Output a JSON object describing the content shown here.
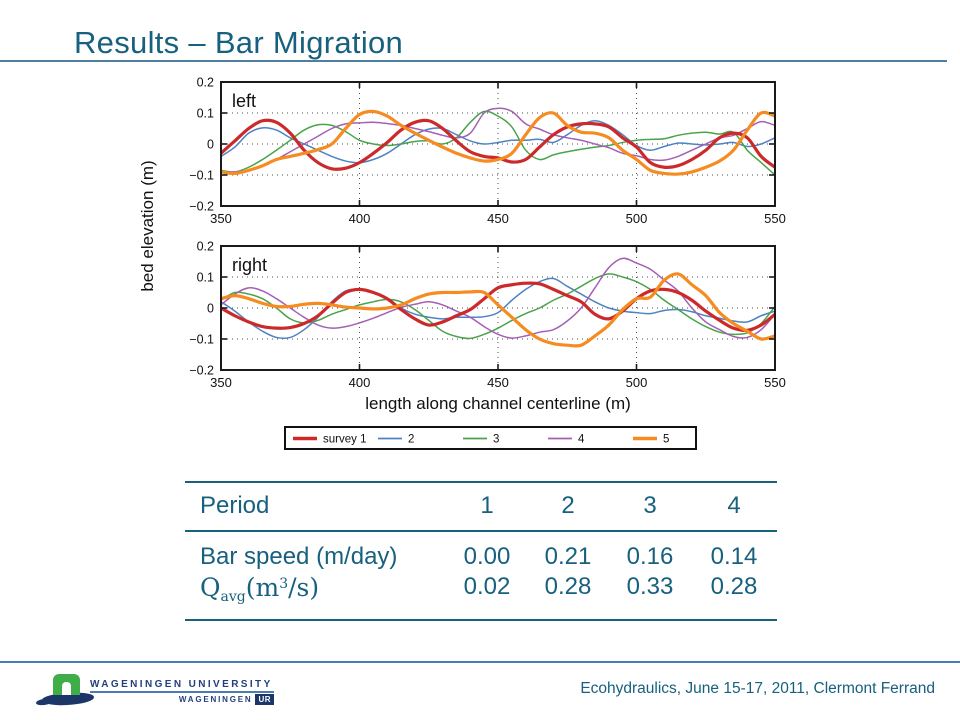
{
  "slide": {
    "title": "Results – Bar Migration"
  },
  "figure": {
    "ylabel": "bed elevation (m)",
    "xlabel": "length along channel centerline (m)",
    "x_tick_labels": [
      "350",
      "400",
      "450",
      "500",
      "550"
    ],
    "y_tick_labels": [
      "0.2",
      "0.1",
      "0",
      "−0.1",
      "−0.2"
    ],
    "legend": [
      {
        "label": "survey 1",
        "color": "#CC2A2A",
        "thick": true
      },
      {
        "label": "2",
        "color": "#4D82C3",
        "thick": false
      },
      {
        "label": "3",
        "color": "#4AA34A",
        "thick": false
      },
      {
        "label": "4",
        "color": "#A55FB5",
        "thick": false
      },
      {
        "label": "5",
        "color": "#F68B20",
        "thick": true
      }
    ]
  },
  "chart_data": [
    {
      "type": "line",
      "panel": "left",
      "x_start": 350,
      "x_step": 5,
      "xlim": [
        350,
        550
      ],
      "ylim": [
        -0.2,
        0.2
      ],
      "xticks": [
        350,
        400,
        450,
        500,
        550
      ],
      "yticks": [
        0.2,
        0.1,
        0,
        -0.1,
        -0.2
      ],
      "grid_x": [
        400,
        450,
        500
      ],
      "grid_y": [
        0.1,
        0,
        -0.1
      ],
      "xlabel": "length along channel centerline (m)",
      "ylabel": "bed elevation (m)",
      "series": [
        {
          "name": "survey 1",
          "color": "#CC2A2A",
          "width": 3.2,
          "values": [
            -0.03,
            0.01,
            0.05,
            0.075,
            0.07,
            0.035,
            -0.02,
            -0.06,
            -0.08,
            -0.078,
            -0.06,
            -0.03,
            0.005,
            0.045,
            0.07,
            0.075,
            0.05,
            0.01,
            -0.025,
            -0.04,
            -0.045,
            -0.058,
            -0.05,
            -0.01,
            0.03,
            0.055,
            0.065,
            0.065,
            0.055,
            0.02,
            -0.01,
            -0.06,
            -0.075,
            -0.07,
            -0.05,
            -0.02,
            0.02,
            0.035,
            0.02,
            -0.04,
            -0.075
          ]
        },
        {
          "name": "2",
          "color": "#4D82C3",
          "width": 1.5,
          "values": [
            -0.04,
            -0.01,
            0.035,
            0.052,
            0.045,
            0.02,
            0,
            -0.02,
            -0.04,
            -0.055,
            -0.06,
            -0.05,
            -0.03,
            0,
            0.03,
            0.048,
            0.05,
            0.03,
            0.01,
            0,
            0.005,
            0.012,
            0.012,
            0.015,
            0.005,
            0.03,
            0.06,
            0.075,
            0.06,
            0.03,
            -0.005,
            -0.02,
            -0.008,
            0.003,
            0,
            -0.003,
            0,
            0.005,
            -0.008,
            0,
            0.02
          ]
        },
        {
          "name": "3",
          "color": "#4AA34A",
          "width": 1.5,
          "values": [
            -0.085,
            -0.09,
            -0.075,
            -0.05,
            -0.02,
            0.012,
            0.045,
            0.062,
            0.06,
            0.04,
            0.012,
            0,
            -0.005,
            0,
            0.008,
            0.01,
            0,
            0.02,
            0.07,
            0.105,
            0.09,
            0.055,
            -0.02,
            -0.05,
            -0.035,
            -0.025,
            -0.017,
            -0.01,
            -0.005,
            0.005,
            0.012,
            0.015,
            0.017,
            0.028,
            0.035,
            0.038,
            0.032,
            0.038,
            -0.02,
            -0.06,
            -0.1
          ]
        },
        {
          "name": "4",
          "color": "#A55FB5",
          "width": 1.5,
          "values": [
            -0.09,
            -0.09,
            -0.085,
            -0.07,
            -0.05,
            -0.025,
            0,
            0.025,
            0.05,
            0.065,
            0.068,
            0.07,
            0.066,
            0.06,
            0.05,
            0.04,
            0.028,
            0.02,
            0.035,
            0.1,
            0.115,
            0.105,
            0.065,
            0.048,
            0.03,
            0.02,
            0.012,
            0,
            -0.012,
            -0.03,
            -0.038,
            -0.05,
            -0.052,
            -0.04,
            -0.02,
            0,
            0.02,
            0.028,
            0.05,
            0.072,
            0.06
          ]
        },
        {
          "name": "5",
          "color": "#F68B20",
          "width": 3.2,
          "values": [
            -0.09,
            -0.095,
            -0.085,
            -0.07,
            -0.05,
            -0.04,
            -0.03,
            -0.018,
            0,
            0.05,
            0.095,
            0.105,
            0.09,
            0.06,
            0.035,
            0.012,
            -0.01,
            -0.03,
            -0.045,
            -0.055,
            -0.05,
            -0.03,
            0.03,
            0.085,
            0.1,
            0.06,
            0.038,
            0.035,
            0.02,
            -0.02,
            -0.05,
            -0.085,
            -0.095,
            -0.097,
            -0.09,
            -0.075,
            -0.055,
            -0.02,
            0.045,
            0.1,
            0.09
          ]
        }
      ]
    },
    {
      "type": "line",
      "panel": "right",
      "x_start": 350,
      "x_step": 5,
      "xlim": [
        350,
        550
      ],
      "ylim": [
        -0.2,
        0.2
      ],
      "xticks": [
        350,
        400,
        450,
        500,
        550
      ],
      "yticks": [
        0.2,
        0.1,
        0,
        -0.1,
        -0.2
      ],
      "grid_x": [
        400,
        450,
        500
      ],
      "grid_y": [
        0.1,
        0,
        -0.1
      ],
      "xlabel": "length along channel centerline (m)",
      "ylabel": "bed elevation (m)",
      "series": [
        {
          "name": "survey 1",
          "color": "#CC2A2A",
          "width": 3.2,
          "values": [
            0,
            -0.025,
            -0.045,
            -0.06,
            -0.065,
            -0.063,
            -0.05,
            -0.025,
            0.015,
            0.05,
            0.06,
            0.05,
            0.03,
            -0.005,
            -0.035,
            -0.055,
            -0.045,
            -0.025,
            -0.005,
            0.03,
            0.065,
            0.075,
            0.08,
            0.078,
            0.06,
            0.04,
            0.02,
            -0.02,
            -0.035,
            -0.01,
            0.03,
            0.055,
            0.06,
            0.05,
            0.025,
            -0.01,
            -0.04,
            -0.065,
            -0.072,
            -0.055,
            -0.02
          ]
        },
        {
          "name": "2",
          "color": "#4D82C3",
          "width": 1.5,
          "values": [
            0.02,
            -0.01,
            -0.045,
            -0.075,
            -0.095,
            -0.095,
            -0.07,
            -0.03,
            0.02,
            0.055,
            0.06,
            0.05,
            0.03,
            0,
            -0.02,
            -0.03,
            -0.035,
            -0.03,
            -0.03,
            -0.028,
            -0.015,
            0.025,
            0.06,
            0.085,
            0.095,
            0.07,
            0.045,
            0.02,
            0,
            -0.01,
            -0.015,
            -0.018,
            -0.008,
            -0.005,
            -0.012,
            -0.025,
            -0.033,
            -0.042,
            -0.045,
            -0.025,
            -0.01
          ]
        },
        {
          "name": "3",
          "color": "#4AA34A",
          "width": 1.5,
          "values": [
            0.025,
            0.05,
            0.045,
            0.03,
            0,
            -0.035,
            -0.048,
            -0.04,
            -0.02,
            -0.005,
            0.01,
            0.02,
            0.028,
            0.02,
            -0.005,
            -0.04,
            -0.075,
            -0.092,
            -0.098,
            -0.085,
            -0.065,
            -0.04,
            -0.018,
            0,
            0.025,
            0.045,
            0.07,
            0.095,
            0.11,
            0.1,
            0.085,
            0.06,
            0.025,
            -0.005,
            -0.035,
            -0.06,
            -0.078,
            -0.085,
            -0.08,
            -0.05,
            0.005
          ]
        },
        {
          "name": "4",
          "color": "#A55FB5",
          "width": 1.5,
          "values": [
            0.01,
            0.045,
            0.065,
            0.055,
            0.03,
            0,
            -0.03,
            -0.055,
            -0.065,
            -0.06,
            -0.048,
            -0.033,
            -0.015,
            0.002,
            0.012,
            0.02,
            0.01,
            -0.01,
            -0.03,
            -0.06,
            -0.085,
            -0.097,
            -0.09,
            -0.078,
            -0.07,
            -0.042,
            0,
            0.065,
            0.13,
            0.16,
            0.145,
            0.125,
            0.09,
            0.055,
            0,
            -0.045,
            -0.07,
            -0.092,
            -0.095,
            -0.07,
            -0.02
          ]
        },
        {
          "name": "5",
          "color": "#F68B20",
          "width": 3.2,
          "values": [
            0.03,
            0.04,
            0.03,
            0.015,
            0.005,
            0.005,
            0.012,
            0.015,
            0.01,
            0.003,
            0,
            -0.003,
            0,
            0.01,
            0.03,
            0.045,
            0.05,
            0.05,
            0.052,
            0.05,
            0.01,
            -0.03,
            -0.07,
            -0.1,
            -0.115,
            -0.12,
            -0.12,
            -0.09,
            -0.055,
            -0.005,
            0.03,
            0.035,
            0.09,
            0.11,
            0.075,
            0.04,
            -0.015,
            -0.05,
            -0.075,
            -0.1,
            -0.09
          ]
        }
      ]
    }
  ],
  "table": {
    "header": {
      "label": "Period",
      "cols": [
        "1",
        "2",
        "3",
        "4"
      ]
    },
    "bar_speed": {
      "label": "Bar speed (m/day)",
      "values": [
        "0.00",
        "0.21",
        "0.16",
        "0.14"
      ]
    },
    "q_avg": {
      "symbol": "Q",
      "subscript": "avg",
      "unit_pre": "(m",
      "exponent": "3",
      "unit_post": "/s)",
      "values": [
        "0.02",
        "0.28",
        "0.33",
        "0.28"
      ]
    }
  },
  "footer": {
    "university_line1": "WAGENINGEN UNIVERSITY",
    "university_line2": "WAGENINGEN",
    "ur_badge": "UR",
    "conference": "Ecohydraulics, June 15-17, 2011, Clermont Ferrand"
  },
  "colors": {
    "accent_teal": "#17607E",
    "footer_navy": "#24407C",
    "footer_line_blue": "#4A7CBA",
    "logo_green": "#3FAE49",
    "logo_navy": "#1C3667"
  }
}
